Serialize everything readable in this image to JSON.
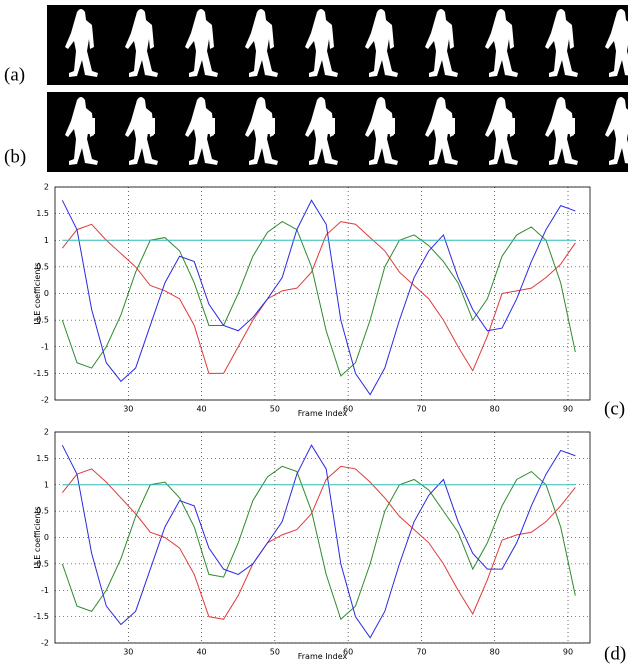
{
  "panel_labels": [
    "(a)",
    "(b)",
    "(c)",
    "(d)"
  ],
  "chart_data": [
    {
      "type": "line",
      "ylabel": "LLE coefficients",
      "xlabel": "Frame Index",
      "x": [
        21,
        23,
        25,
        27,
        29,
        31,
        33,
        35,
        37,
        39,
        41,
        43,
        45,
        47,
        49,
        51,
        53,
        55,
        57,
        59,
        61,
        63,
        65,
        67,
        69,
        71,
        73,
        75,
        77,
        79,
        81,
        83,
        85,
        87,
        89,
        91
      ],
      "xlim": [
        20,
        93
      ],
      "ylim": [
        -2,
        2
      ],
      "xticks": [
        30,
        40,
        50,
        60,
        70,
        80,
        90
      ],
      "yticks": [
        -2,
        -1.5,
        -1,
        -0.5,
        0,
        0.5,
        1,
        1.5,
        2
      ],
      "grid": true,
      "series": [
        {
          "color": "#e03a3a",
          "values": [
            0.85,
            1.2,
            1.3,
            1.0,
            0.75,
            0.5,
            0.15,
            0.05,
            -0.1,
            -0.6,
            -1.5,
            -1.5,
            -1.0,
            -0.5,
            -0.1,
            0.05,
            0.1,
            0.4,
            1.1,
            1.35,
            1.3,
            1.05,
            0.8,
            0.4,
            0.15,
            -0.1,
            -0.5,
            -1.0,
            -1.45,
            -0.8,
            0.0,
            0.05,
            0.1,
            0.3,
            0.55,
            0.95
          ]
        },
        {
          "color": "#2e8b2e",
          "values": [
            -0.5,
            -1.3,
            -1.4,
            -1.0,
            -0.4,
            0.4,
            1.0,
            1.05,
            0.8,
            0.2,
            -0.6,
            -0.6,
            0.0,
            0.7,
            1.15,
            1.35,
            1.2,
            0.5,
            -0.7,
            -1.55,
            -1.3,
            -0.5,
            0.5,
            1.0,
            1.1,
            0.9,
            0.6,
            0.2,
            -0.5,
            -0.1,
            0.7,
            1.1,
            1.25,
            1.0,
            0.2,
            -1.1
          ]
        },
        {
          "color": "#2a2ae0",
          "values": [
            1.75,
            1.2,
            -0.3,
            -1.3,
            -1.65,
            -1.4,
            -0.6,
            0.2,
            0.7,
            0.6,
            -0.2,
            -0.6,
            -0.7,
            -0.45,
            -0.1,
            0.3,
            1.2,
            1.75,
            1.3,
            -0.5,
            -1.5,
            -1.9,
            -1.4,
            -0.5,
            0.3,
            0.8,
            1.1,
            0.3,
            -0.3,
            -0.7,
            -0.65,
            -0.1,
            0.6,
            1.2,
            1.65,
            1.55
          ]
        },
        {
          "color": "#30b8b8",
          "values": [
            1,
            1,
            1,
            1,
            1,
            1,
            1,
            1,
            1,
            1,
            1,
            1,
            1,
            1,
            1,
            1,
            1,
            1,
            1,
            1,
            1,
            1,
            1,
            1,
            1,
            1,
            1,
            1,
            1,
            1,
            1,
            1,
            1,
            1,
            1,
            1
          ]
        }
      ]
    },
    {
      "type": "line",
      "ylabel": "LLE coefficients",
      "xlabel": "Frame Index",
      "x": [
        21,
        23,
        25,
        27,
        29,
        31,
        33,
        35,
        37,
        39,
        41,
        43,
        45,
        47,
        49,
        51,
        53,
        55,
        57,
        59,
        61,
        63,
        65,
        67,
        69,
        71,
        73,
        75,
        77,
        79,
        81,
        83,
        85,
        87,
        89,
        91
      ],
      "xlim": [
        20,
        93
      ],
      "ylim": [
        -2,
        2
      ],
      "xticks": [
        30,
        40,
        50,
        60,
        70,
        80,
        90
      ],
      "yticks": [
        -2,
        -1.5,
        -1,
        -0.5,
        0,
        0.5,
        1,
        1.5,
        2
      ],
      "grid": true,
      "series": [
        {
          "color": "#e03a3a",
          "values": [
            0.85,
            1.2,
            1.3,
            1.05,
            0.75,
            0.45,
            0.1,
            0.0,
            -0.2,
            -0.7,
            -1.5,
            -1.55,
            -1.1,
            -0.5,
            -0.1,
            0.05,
            0.15,
            0.45,
            1.1,
            1.35,
            1.3,
            1.05,
            0.75,
            0.4,
            0.15,
            -0.1,
            -0.5,
            -1.0,
            -1.45,
            -0.8,
            -0.05,
            0.05,
            0.1,
            0.3,
            0.6,
            0.95
          ]
        },
        {
          "color": "#2e8b2e",
          "values": [
            -0.5,
            -1.3,
            -1.4,
            -1.0,
            -0.4,
            0.4,
            1.0,
            1.05,
            0.75,
            0.2,
            -0.7,
            -0.75,
            -0.1,
            0.7,
            1.15,
            1.35,
            1.25,
            0.5,
            -0.7,
            -1.55,
            -1.3,
            -0.5,
            0.5,
            1.0,
            1.1,
            0.9,
            0.5,
            0.1,
            -0.6,
            -0.1,
            0.6,
            1.1,
            1.25,
            1.0,
            0.2,
            -1.1
          ]
        },
        {
          "color": "#2a2ae0",
          "values": [
            1.75,
            1.2,
            -0.3,
            -1.3,
            -1.65,
            -1.4,
            -0.6,
            0.2,
            0.7,
            0.6,
            -0.2,
            -0.6,
            -0.7,
            -0.5,
            -0.1,
            0.3,
            1.2,
            1.75,
            1.3,
            -0.5,
            -1.5,
            -1.9,
            -1.4,
            -0.5,
            0.3,
            0.8,
            1.1,
            0.3,
            -0.3,
            -0.6,
            -0.6,
            -0.1,
            0.6,
            1.2,
            1.65,
            1.55
          ]
        },
        {
          "color": "#30b8b8",
          "values": [
            1,
            1,
            1,
            1,
            1,
            1,
            1,
            1,
            1,
            1,
            1,
            1,
            1,
            1,
            1,
            1,
            1,
            1,
            1,
            1,
            1,
            1,
            1,
            1,
            1,
            1,
            1,
            1,
            1,
            1,
            1,
            1,
            1,
            1,
            1,
            1
          ]
        }
      ]
    }
  ]
}
